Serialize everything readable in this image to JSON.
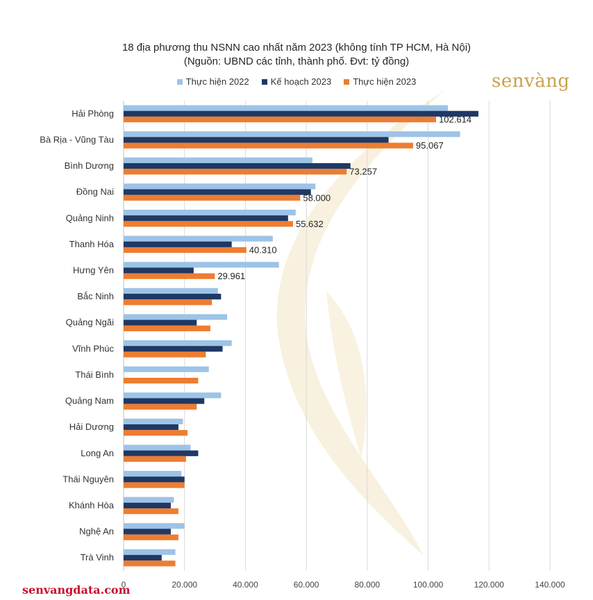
{
  "chart_data": {
    "type": "bar",
    "orientation": "horizontal",
    "title": "18 địa phương thu NSNN cao nhất năm 2023 (không tính TP HCM, Hà Nội)",
    "subtitle": "(Nguồn: UBND các tỉnh, thành phố. Đvt: tỷ đồng)",
    "categories": [
      "Hải Phòng",
      "Bà Rịa - Vũng Tàu",
      "Bình Dương",
      "Đồng Nai",
      "Quảng Ninh",
      "Thanh Hóa",
      "Hưng Yên",
      "Bắc Ninh",
      "Quảng Ngãi",
      "Vĩnh Phúc",
      "Thái Bình",
      "Quảng Nam",
      "Hải Dương",
      "Long An",
      "Thái Nguyên",
      "Khánh Hòa",
      "Nghệ An",
      "Trà Vinh"
    ],
    "series": [
      {
        "name": "Thực hiện 2022",
        "color": "#9dc3e6",
        "values": [
          106500,
          110500,
          62000,
          63000,
          56500,
          49000,
          51000,
          31000,
          34000,
          35500,
          28000,
          32000,
          19500,
          22000,
          19000,
          16500,
          20000,
          17000
        ]
      },
      {
        "name": "Kế hoạch 2023",
        "color": "#1f3864",
        "values": [
          116500,
          87000,
          74500,
          61500,
          54000,
          35500,
          23000,
          32000,
          24000,
          32500,
          null,
          26500,
          18000,
          24500,
          20000,
          15500,
          15500,
          12500
        ]
      },
      {
        "name": "Thực hiện 2023",
        "color": "#ed7d31",
        "values": [
          102614,
          95067,
          73257,
          58000,
          55632,
          40310,
          29961,
          29000,
          28500,
          27000,
          24500,
          24000,
          21000,
          20500,
          20000,
          18000,
          18000,
          17000
        ]
      }
    ],
    "data_labels": [
      "102.614",
      "95.067",
      "73.257",
      "58.000",
      "55.632",
      "40.310",
      "29.961"
    ],
    "x_ticks": [
      "0",
      "20.000",
      "40.000",
      "60.000",
      "80.000",
      "100.000",
      "120.000",
      "140.000"
    ],
    "xlim": [
      0,
      140000
    ],
    "grid": true,
    "legend_position": "top"
  },
  "brand": {
    "logo_text": "senvàng",
    "color": "#c9a24a"
  },
  "footer": {
    "text": "senvangdata.com",
    "color": "#c8102e"
  }
}
